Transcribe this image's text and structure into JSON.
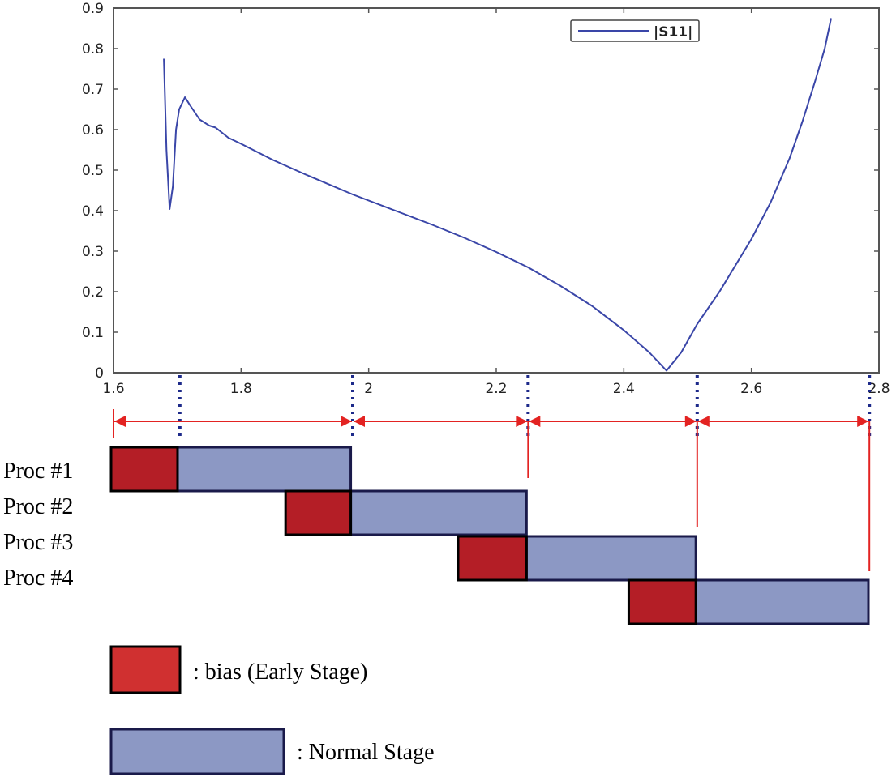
{
  "chart_data": {
    "type": "line",
    "xlim": [
      1.6,
      2.8
    ],
    "ylim": [
      0,
      0.9
    ],
    "x_ticks": [
      "1.6",
      "1.8",
      "2",
      "2.2",
      "2.4",
      "2.6",
      "2.8"
    ],
    "y_ticks": [
      "0",
      "0.1",
      "0.2",
      "0.3",
      "0.4",
      "0.5",
      "0.6",
      "0.7",
      "0.8",
      "0.9"
    ],
    "grid": false,
    "legend_position": "top-right",
    "series": [
      {
        "name": "|S11|",
        "color": "#3a46a8",
        "x": [
          1.679,
          1.683,
          1.688,
          1.693,
          1.698,
          1.703,
          1.712,
          1.72,
          1.735,
          1.75,
          1.76,
          1.78,
          1.8,
          1.85,
          1.9,
          1.975,
          2.05,
          2.1,
          2.15,
          2.2,
          2.25,
          2.3,
          2.35,
          2.4,
          2.44,
          2.467,
          2.49,
          2.515,
          2.55,
          2.6,
          2.63,
          2.66,
          2.68,
          2.7,
          2.715,
          2.725
        ],
        "y": [
          0.775,
          0.55,
          0.404,
          0.46,
          0.6,
          0.65,
          0.68,
          0.66,
          0.625,
          0.61,
          0.605,
          0.58,
          0.565,
          0.525,
          0.49,
          0.44,
          0.395,
          0.365,
          0.333,
          0.298,
          0.26,
          0.215,
          0.165,
          0.105,
          0.05,
          0.005,
          0.05,
          0.12,
          0.2,
          0.33,
          0.42,
          0.53,
          0.62,
          0.72,
          0.8,
          0.875
        ]
      }
    ],
    "boundaries": [
      1.704,
      1.975,
      2.25,
      2.515,
      2.785
    ]
  },
  "schedule": {
    "processes": [
      {
        "label": "Proc #1",
        "bias_start": 1.6,
        "normal_start": 1.704,
        "end": 1.975
      },
      {
        "label": "Proc #2",
        "bias_start": 1.873,
        "normal_start": 1.975,
        "end": 2.25
      },
      {
        "label": "Proc #3",
        "bias_start": 2.143,
        "normal_start": 2.25,
        "end": 2.515
      },
      {
        "label": "Proc #4",
        "bias_start": 2.41,
        "normal_start": 2.515,
        "end": 2.785
      }
    ],
    "bias_color": "#b41e26",
    "normal_color": "#8c98c4"
  },
  "legend": {
    "bias_label": ": bias (Early Stage)",
    "normal_label": ": Normal Stage",
    "bias_color": "#d03030",
    "normal_color": "#8c98c4"
  }
}
